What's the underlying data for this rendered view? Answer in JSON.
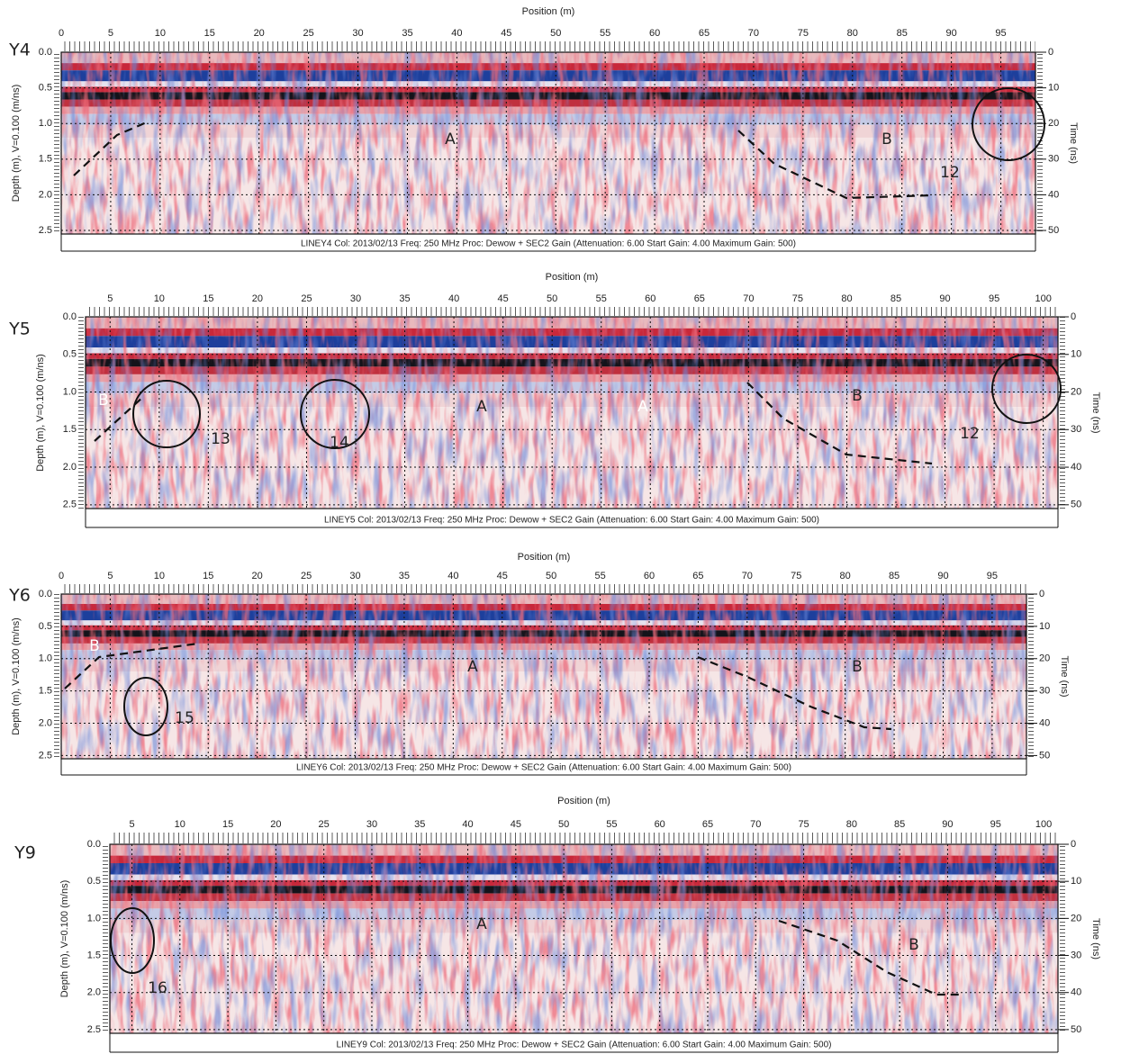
{
  "chart_data": [
    {
      "type": "radargram",
      "panel_label": "Y4",
      "xlabel": "Position (m)",
      "ylabel": "Depth (m), V=0.100 (m/ns)",
      "y2label": "Time (ns)",
      "caption": "LINEY4 Col: 2013/02/13 Freq: 250 MHz Proc: Dewow + SEC2 Gain (Attenuation: 6.00 Start Gain: 4.00 Maximum Gain: 500)",
      "xlim": [
        0,
        98.5
      ],
      "xticks": [
        0,
        5,
        10,
        15,
        20,
        25,
        30,
        35,
        40,
        45,
        50,
        55,
        60,
        65,
        70,
        75,
        80,
        85,
        90,
        95
      ],
      "ylim": [
        0,
        2.55
      ],
      "yticks": [
        {
          "value": 0,
          "label": "0.0"
        },
        0.5,
        {
          "value": 1,
          "label": "1.0"
        },
        1.5,
        {
          "value": 2,
          "label": "2.0"
        },
        2.5
      ],
      "y2lim": [
        0,
        51
      ],
      "y2ticks": [
        0,
        10,
        20,
        30,
        40,
        50
      ],
      "y_inverted": true,
      "grid": true,
      "annotations": [
        "A",
        "B",
        "12"
      ]
    },
    {
      "type": "radargram",
      "panel_label": "Y5",
      "xlabel": "Position (m)",
      "ylabel": "Depth (m), V=0.100 (m/ns)",
      "y2label": "Time (ns)",
      "caption": "LINEY5 Col: 2013/02/13 Freq: 250 MHz Proc: Dewow + SEC2 Gain (Attenuation: 6.00 Start Gain: 4.00 Maximum Gain: 500)",
      "xlim": [
        2.5,
        101.5
      ],
      "xticks": [
        5,
        10,
        15,
        20,
        25,
        30,
        35,
        40,
        45,
        50,
        55,
        60,
        65,
        70,
        75,
        80,
        85,
        90,
        95,
        100
      ],
      "ylim": [
        0,
        2.55
      ],
      "yticks": [
        {
          "value": 0,
          "label": "0.0"
        },
        0.5,
        {
          "value": 1,
          "label": "1.0"
        },
        1.5,
        {
          "value": 2,
          "label": "2.0"
        },
        2.5
      ],
      "y2lim": [
        0,
        51
      ],
      "y2ticks": [
        0,
        10,
        20,
        30,
        40,
        50
      ],
      "y_inverted": true,
      "grid": true,
      "annotations": [
        "B",
        "13",
        "14",
        "A",
        "A",
        "B",
        "12"
      ]
    },
    {
      "type": "radargram",
      "panel_label": "Y6",
      "xlabel": "Position (m)",
      "ylabel": "Depth (m), V=0.100 (m/ns)",
      "y2label": "Time (ns)",
      "caption": "LINEY6 Col: 2013/02/13 Freq: 250 MHz Proc: Dewow + SEC2 Gain (Attenuation: 6.00 Start Gain: 4.00 Maximum Gain: 500)",
      "xlim": [
        0,
        98.5
      ],
      "xticks": [
        0,
        5,
        10,
        15,
        20,
        25,
        30,
        35,
        40,
        45,
        50,
        55,
        60,
        65,
        70,
        75,
        80,
        85,
        90,
        95
      ],
      "ylim": [
        0,
        2.55
      ],
      "yticks": [
        {
          "value": 0,
          "label": "0.0"
        },
        0.5,
        {
          "value": 1,
          "label": "1.0"
        },
        1.5,
        {
          "value": 2,
          "label": "2.0"
        },
        2.5
      ],
      "y2lim": [
        0,
        51
      ],
      "y2ticks": [
        0,
        10,
        20,
        30,
        40,
        50
      ],
      "y_inverted": true,
      "grid": true,
      "annotations": [
        "B",
        "A",
        "B",
        "15"
      ]
    },
    {
      "type": "radargram",
      "panel_label": "Y9",
      "xlabel": "Position (m)",
      "ylabel": "Depth (m), V=0.100 (m/ns)",
      "y2label": "Time (ns)",
      "caption": "LINEY9 Col: 2013/02/13 Freq: 250 MHz Proc: Dewow + SEC2 Gain (Attenuation: 6.00 Start Gain: 4.00 Maximum Gain: 500)",
      "xlim": [
        2.7,
        101.5
      ],
      "xticks": [
        5,
        10,
        15,
        20,
        25,
        30,
        35,
        40,
        45,
        50,
        55,
        60,
        65,
        70,
        75,
        80,
        85,
        90,
        95,
        100
      ],
      "ylim": [
        0,
        2.55
      ],
      "yticks": [
        {
          "value": 0,
          "label": "0.0"
        },
        0.5,
        {
          "value": 1,
          "label": "1.0"
        },
        1.5,
        {
          "value": 2,
          "label": "2.0"
        },
        2.5
      ],
      "y2lim": [
        0,
        51
      ],
      "y2ticks": [
        0,
        10,
        20,
        30,
        40,
        50
      ],
      "y_inverted": true,
      "grid": true,
      "annotations": [
        "16",
        "A",
        "B"
      ]
    }
  ]
}
